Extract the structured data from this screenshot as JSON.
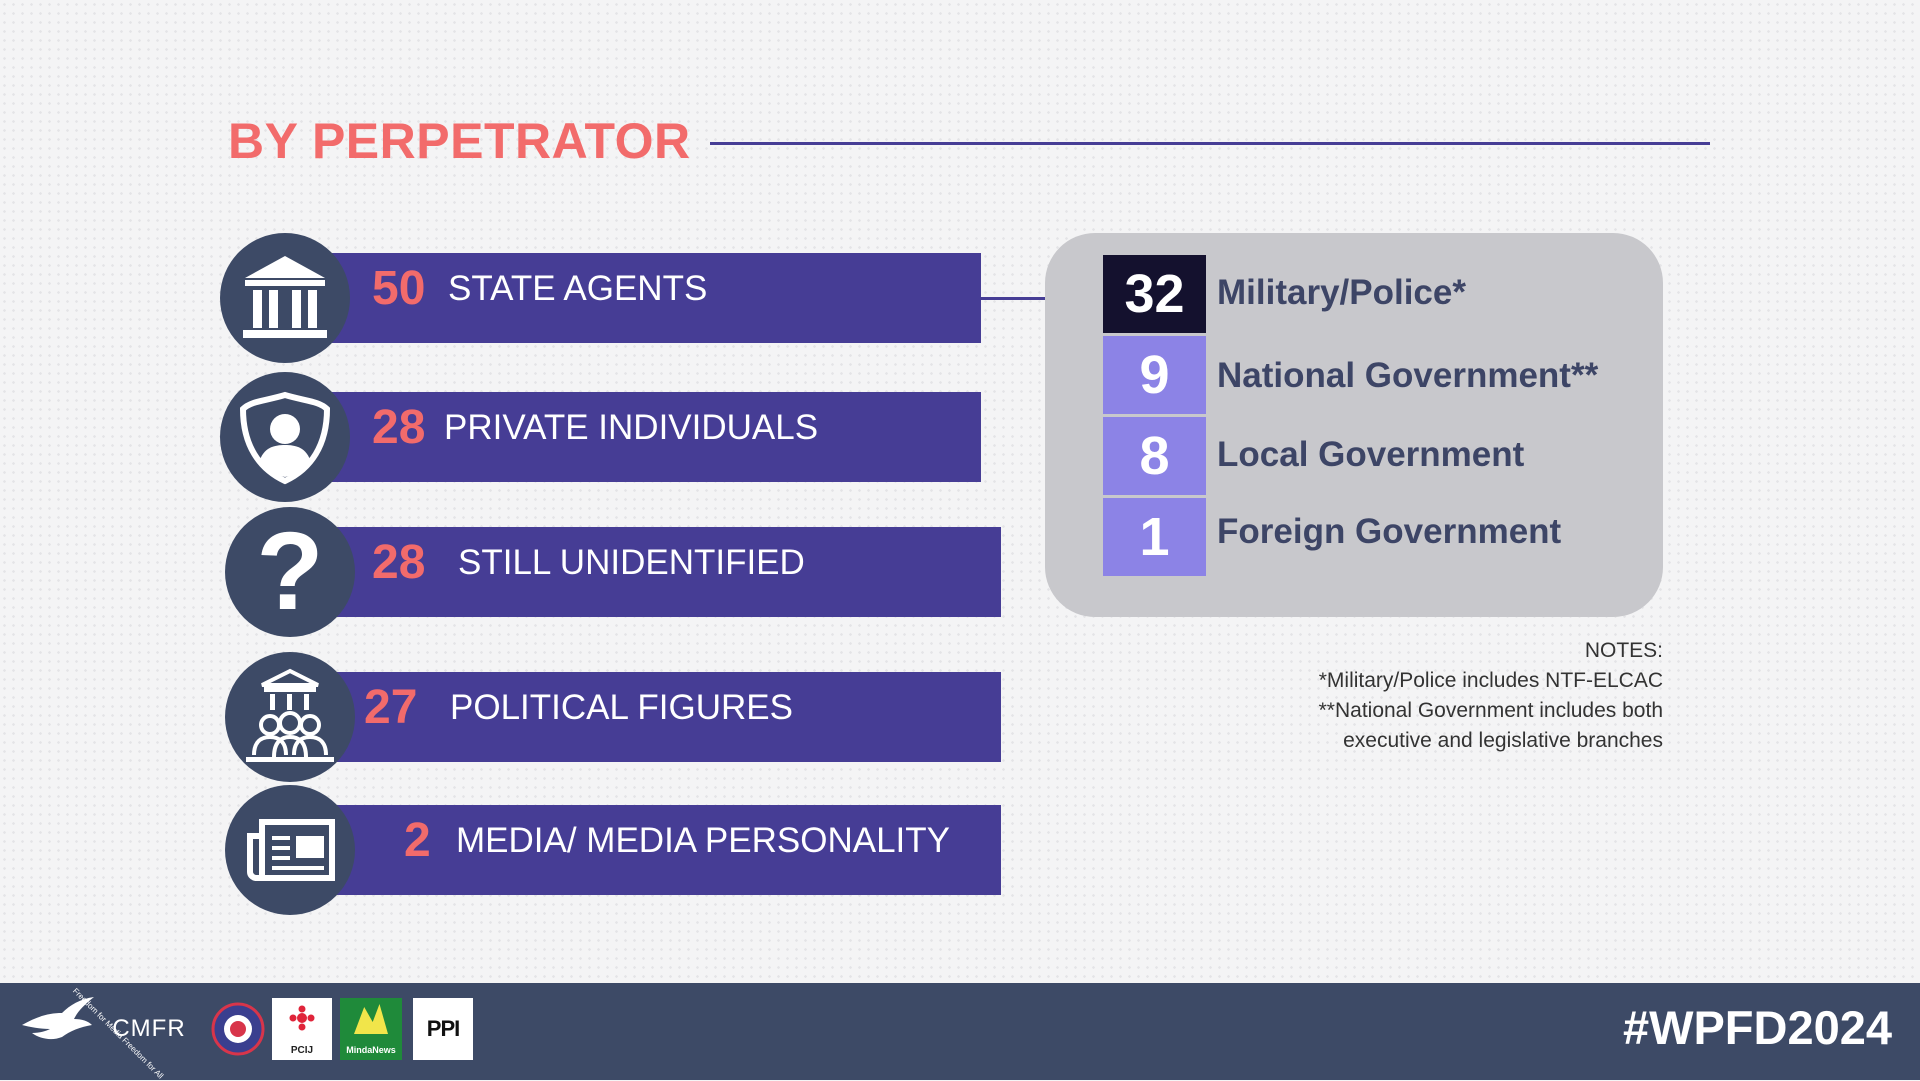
{
  "header": {
    "title": "BY PERPETRATOR"
  },
  "categories": [
    {
      "count": "50",
      "label": "STATE AGENTS",
      "icon": "government-building-icon"
    },
    {
      "count": "28",
      "label": "PRIVATE INDIVIDUALS",
      "icon": "person-shield-icon"
    },
    {
      "count": "28",
      "label": "STILL UNIDENTIFIED",
      "icon": "question-mark-icon"
    },
    {
      "count": "27",
      "label": "POLITICAL FIGURES",
      "icon": "political-figures-icon"
    },
    {
      "count": "2",
      "label": "MEDIA/ MEDIA PERSONALITY",
      "icon": "newspaper-icon"
    }
  ],
  "breakdown": [
    {
      "count": "32",
      "label": "Military/Police*",
      "color": "#14112e"
    },
    {
      "count": "9",
      "label": "National Government**",
      "color": "#8c83e6"
    },
    {
      "count": "8",
      "label": "Local Government",
      "color": "#8c83e6"
    },
    {
      "count": "1",
      "label": "Foreign Government",
      "color": "#8c83e6"
    }
  ],
  "notes": {
    "heading": "NOTES:",
    "line1": "*Military/Police includes NTF-ELCAC",
    "line2": "**National Government includes both",
    "line3": "executive and legislative branches"
  },
  "footer": {
    "hashtag": "#WPFD2024",
    "logos": [
      "Freedom for Media Freedom for All",
      "CMFR",
      "PCIJ",
      "MindaNews",
      "PPI"
    ]
  },
  "colors": {
    "accent": "#f26b6b",
    "bar": "#463d95",
    "circle": "#3d4a66",
    "footer": "#3d4a66"
  }
}
